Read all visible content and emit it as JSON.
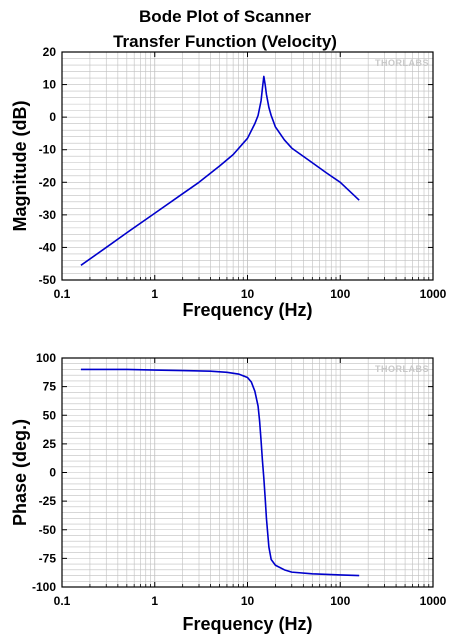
{
  "title": {
    "line1": "Bode Plot of Scanner",
    "line2": "Transfer Function (Velocity)"
  },
  "brand": {
    "logo_text": "THORLABS"
  },
  "colors": {
    "series": "#0000cc",
    "grid": "#bfbfbf",
    "axis": "#000000"
  },
  "chart_data": [
    {
      "type": "line",
      "xlabel": "Frequency (Hz)",
      "ylabel": "Magnitude (dB)",
      "xscale": "log",
      "xlim": [
        0.1,
        1000
      ],
      "ylim": [
        -50,
        20
      ],
      "xticks": [
        "0.1",
        "1",
        "10",
        "100",
        "1000"
      ],
      "yticks": [
        "20",
        "10",
        "0",
        "-10",
        "-20",
        "-30",
        "-40",
        "-50"
      ],
      "grid": true,
      "series": [
        {
          "x": [
            0.16,
            0.3,
            0.5,
            1,
            2,
            3,
            5,
            7,
            10,
            12,
            13,
            14,
            14.5,
            15,
            15.5,
            16,
            17,
            18,
            20,
            25,
            30,
            50,
            70,
            100,
            160
          ],
          "y": [
            -45.5,
            -40,
            -35.5,
            -29.5,
            -23.5,
            -20,
            -15,
            -11.5,
            -6.5,
            -2,
            0.5,
            5,
            9,
            12.5,
            10,
            7,
            3,
            0.5,
            -3,
            -7,
            -9.5,
            -14,
            -17,
            -20,
            -25.5
          ]
        }
      ]
    },
    {
      "type": "line",
      "xlabel": "Frequency (Hz)",
      "ylabel": "Phase (deg.)",
      "xscale": "log",
      "xlim": [
        0.1,
        1000
      ],
      "ylim": [
        -100,
        100
      ],
      "xticks": [
        "0.1",
        "1",
        "10",
        "100",
        "1000"
      ],
      "yticks": [
        "100",
        "75",
        "50",
        "25",
        "0",
        "-25",
        "-50",
        "-75",
        "-100"
      ],
      "grid": true,
      "series": [
        {
          "x": [
            0.16,
            0.5,
            1,
            2,
            4,
            6,
            8,
            10,
            11,
            12,
            13,
            13.5,
            14,
            14.5,
            15,
            15.5,
            16,
            17,
            18,
            20,
            25,
            30,
            50,
            100,
            160
          ],
          "y": [
            90,
            90,
            89.5,
            89,
            88.5,
            87.5,
            86,
            83,
            79,
            71,
            58,
            45,
            28,
            10,
            -5,
            -22,
            -40,
            -65,
            -76,
            -81,
            -85,
            -87,
            -88.5,
            -89.5,
            -90
          ]
        }
      ]
    }
  ]
}
